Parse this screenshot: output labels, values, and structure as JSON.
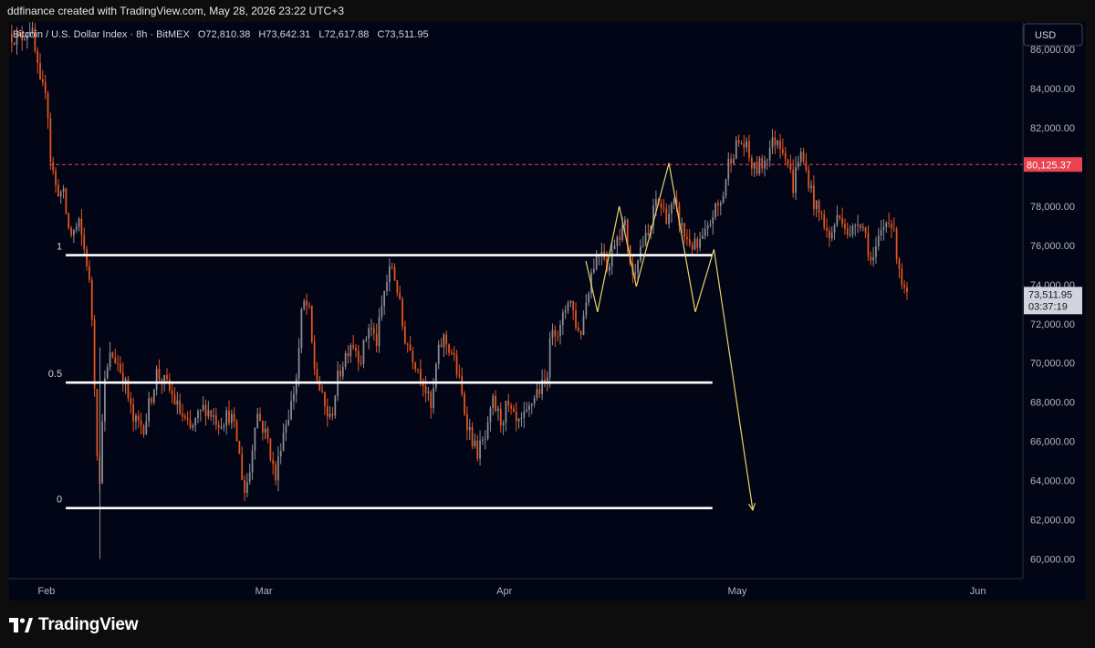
{
  "header": {
    "attribution": "ddfinance created with TradingView.com, May 28, 2026 23:22 UTC+3"
  },
  "footer": {
    "logo_text": "TradingView"
  },
  "chart_data": {
    "type": "candlestick",
    "symbol_line": "Bitcoin / U.S. Dollar Index · 8h · BitMEX",
    "ohlc": {
      "o": "O72,810.38",
      "h": "H73,642.31",
      "l": "L72,617.88",
      "c": "C73,511.95"
    },
    "currency": "USD",
    "ylim": [
      59000,
      87400
    ],
    "y_ticks": [
      60000,
      62000,
      64000,
      66000,
      68000,
      70000,
      72000,
      74000,
      76000,
      78000,
      80000,
      82000,
      84000,
      86000
    ],
    "y_tick_labels": [
      "60,000.00",
      "62,000.00",
      "64,000.00",
      "66,000.00",
      "68,000.00",
      "70,000.00",
      "72,000.00",
      "74,000.00",
      "76,000.00",
      "78,000.00",
      "80,000.00",
      "82,000.00",
      "84,000.00",
      "86,000.00"
    ],
    "x_labels": [
      {
        "label": "Feb",
        "day": 31
      },
      {
        "label": "Mar",
        "day": 59
      },
      {
        "label": "Apr",
        "day": 90
      },
      {
        "label": "May",
        "day": 120
      },
      {
        "label": "Jun",
        "day": 151
      }
    ],
    "xlim_days": [
      26.2,
      156.8
    ],
    "last_price": {
      "value": 73511.95,
      "label": "73,511.95",
      "countdown": "03:37:19"
    },
    "alert_line": {
      "value": 80125.37,
      "label": "80,125.37"
    },
    "fib_levels": [
      {
        "label": "1",
        "value": 75500
      },
      {
        "label": "0.5",
        "value": 69000
      },
      {
        "label": "0",
        "value": 62600
      }
    ],
    "fib_day_range": [
      33.5,
      116.8
    ],
    "projection_path": [
      {
        "day": 100.5,
        "value": 75200
      },
      {
        "day": 102.0,
        "value": 72600
      },
      {
        "day": 104.8,
        "value": 78000
      },
      {
        "day": 107.0,
        "value": 73900
      },
      {
        "day": 111.2,
        "value": 80200
      },
      {
        "day": 114.6,
        "value": 72600
      },
      {
        "day": 117.0,
        "value": 75800
      },
      {
        "day": 122.0,
        "value": 62500
      }
    ],
    "price_path": [
      [
        26.2,
        86800
      ],
      [
        27.5,
        86500
      ],
      [
        29,
        87200
      ],
      [
        30.3,
        83800
      ],
      [
        31,
        84200
      ],
      [
        31.5,
        80500
      ],
      [
        32.2,
        79000
      ],
      [
        33.2,
        78500
      ],
      [
        34,
        76500
      ],
      [
        35.2,
        77000
      ],
      [
        36.2,
        75200
      ],
      [
        36.8,
        73000
      ],
      [
        37.3,
        68000
      ],
      [
        37.8,
        63000
      ],
      [
        38.3,
        68500
      ],
      [
        39.3,
        70500
      ],
      [
        40.2,
        70000
      ],
      [
        41,
        69200
      ],
      [
        42.2,
        67000
      ],
      [
        43.6,
        66800
      ],
      [
        45.2,
        69500
      ],
      [
        46.6,
        68800
      ],
      [
        48.2,
        67500
      ],
      [
        49.5,
        66500
      ],
      [
        51.4,
        67800
      ],
      [
        53.2,
        67000
      ],
      [
        54.7,
        67400
      ],
      [
        55.6,
        66000
      ],
      [
        56.5,
        63400
      ],
      [
        57.2,
        64500
      ],
      [
        58,
        67600
      ],
      [
        59.6,
        66000
      ],
      [
        60.5,
        64000
      ],
      [
        61.3,
        66200
      ],
      [
        62.6,
        68000
      ],
      [
        63.3,
        69500
      ],
      [
        64,
        73100
      ],
      [
        64.8,
        72800
      ],
      [
        65.4,
        70000
      ],
      [
        66.6,
        68000
      ],
      [
        67.6,
        67000
      ],
      [
        68.4,
        69000
      ],
      [
        69.3,
        70200
      ],
      [
        70.3,
        71200
      ],
      [
        71.5,
        70200
      ],
      [
        72.6,
        72000
      ],
      [
        73.5,
        71000
      ],
      [
        74.6,
        73800
      ],
      [
        75.5,
        75000
      ],
      [
        76.2,
        73800
      ],
      [
        77,
        71500
      ],
      [
        78.4,
        70200
      ],
      [
        79.5,
        69200
      ],
      [
        80.6,
        67500
      ],
      [
        81.3,
        70200
      ],
      [
        82.1,
        71300
      ],
      [
        83.3,
        70500
      ],
      [
        84.2,
        69000
      ],
      [
        85,
        67300
      ],
      [
        86.4,
        65400
      ],
      [
        87.7,
        66200
      ],
      [
        88.5,
        68000
      ],
      [
        89.6,
        67000
      ],
      [
        90.3,
        67800
      ],
      [
        91.7,
        66700
      ],
      [
        92.9,
        67300
      ],
      [
        94,
        68500
      ],
      [
        95.3,
        68900
      ],
      [
        96.2,
        72000
      ],
      [
        97.1,
        71500
      ],
      [
        98.3,
        73500
      ],
      [
        99.7,
        71300
      ],
      [
        100.8,
        73800
      ],
      [
        101.4,
        75000
      ],
      [
        102.6,
        76000
      ],
      [
        103.4,
        74700
      ],
      [
        104.3,
        76500
      ],
      [
        105.6,
        77000
      ],
      [
        106.5,
        74300
      ],
      [
        107.3,
        75800
      ],
      [
        108.6,
        76500
      ],
      [
        109.6,
        78400
      ],
      [
        110.8,
        77500
      ],
      [
        111.9,
        78000
      ],
      [
        113.3,
        76400
      ],
      [
        114.8,
        75800
      ],
      [
        116.2,
        76700
      ],
      [
        116.8,
        77600
      ],
      [
        118,
        78200
      ],
      [
        119,
        80500
      ],
      [
        120.3,
        81300
      ],
      [
        121.1,
        81000
      ],
      [
        122.1,
        79800
      ],
      [
        123.3,
        80200
      ],
      [
        124.3,
        81100
      ],
      [
        125.2,
        81500
      ],
      [
        126.3,
        80700
      ],
      [
        127.2,
        79000
      ],
      [
        128,
        80800
      ],
      [
        129.1,
        79500
      ],
      [
        130,
        78000
      ],
      [
        131.2,
        77200
      ],
      [
        131.8,
        76200
      ],
      [
        132.7,
        77300
      ],
      [
        133.6,
        77500
      ],
      [
        134.5,
        76300
      ],
      [
        135.5,
        77500
      ],
      [
        136.4,
        76800
      ],
      [
        137.2,
        75200
      ],
      [
        137.7,
        75300
      ],
      [
        138.3,
        76400
      ],
      [
        139.6,
        77600
      ],
      [
        140.5,
        75800
      ],
      [
        141.5,
        73500
      ],
      [
        142.1,
        73500
      ]
    ]
  }
}
